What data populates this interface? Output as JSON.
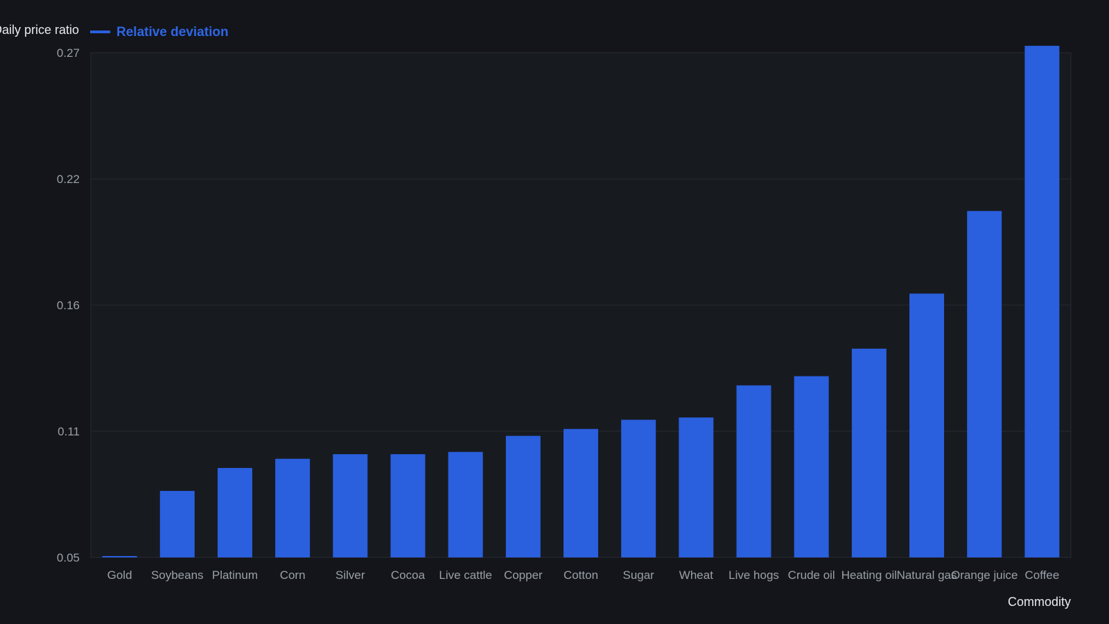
{
  "chart_data": {
    "type": "bar",
    "title": "",
    "ylabel": "Daily price ratio",
    "xlabel": "Commodity",
    "legend": {
      "position": "top-left",
      "entries": [
        "Relative deviation"
      ]
    },
    "series": [
      {
        "name": "Relative deviation",
        "color": "#2a5fde",
        "values": [
          0.05,
          0.079,
          0.089,
          0.093,
          0.095,
          0.095,
          0.096,
          0.103,
          0.106,
          0.11,
          0.111,
          0.125,
          0.129,
          0.141,
          0.165,
          0.201,
          0.273
        ]
      }
    ],
    "categories": [
      "Gold",
      "Soybeans",
      "Platinum",
      "Corn",
      "Silver",
      "Cocoa",
      "Live cattle",
      "Copper",
      "Cotton",
      "Sugar",
      "Wheat",
      "Live hogs",
      "Crude oil",
      "Heating oil",
      "Natural gas",
      "Orange juice",
      "Coffee"
    ],
    "yticks": [
      "0.27",
      "0.22",
      "0.16",
      "0.11",
      "0.05"
    ],
    "ylim": [
      0.05,
      0.27
    ],
    "grid": true
  },
  "colors": {
    "background": "#13151a",
    "plot_background": "#171a1f",
    "bar": "#2a5fde",
    "grid": "#272a30",
    "legend_text": "#2f66e6"
  }
}
